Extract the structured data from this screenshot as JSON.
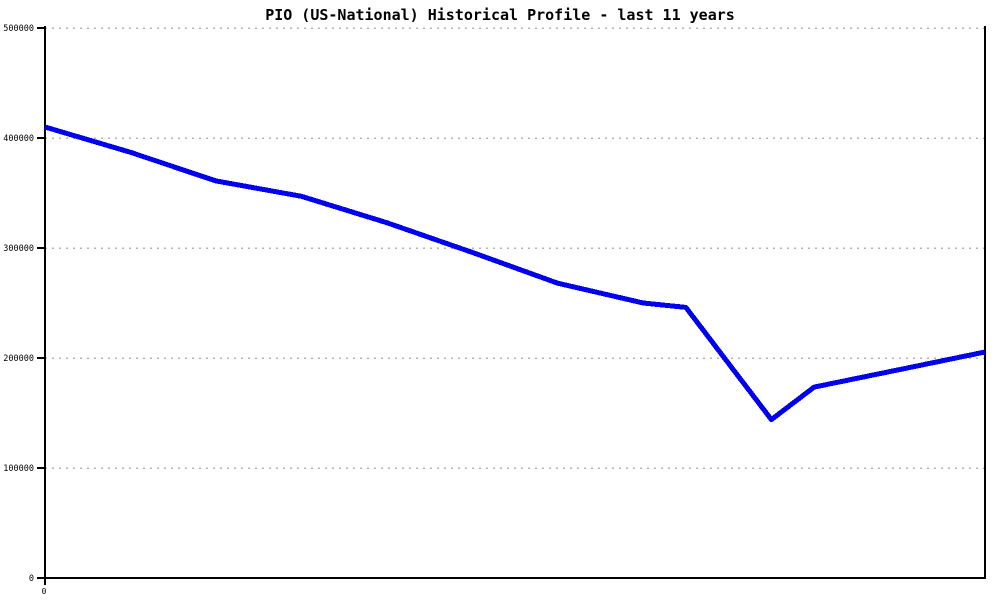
{
  "chart_data": {
    "type": "line",
    "title": "PIO (US-National) Historical Profile - last 11 years",
    "xlabel": "",
    "ylabel": "",
    "x_axis": {
      "range": [
        0,
        11
      ],
      "unit": "years ago (relative index)",
      "ticks": [
        {
          "value": 0,
          "label": "0"
        }
      ]
    },
    "y_axis": {
      "range": [
        0,
        500000
      ],
      "ticks": [
        {
          "value": 0,
          "label": "0"
        },
        {
          "value": 100000,
          "label": "100000"
        },
        {
          "value": 200000,
          "label": "200000"
        },
        {
          "value": 300000,
          "label": "300000"
        },
        {
          "value": 400000,
          "label": "400000"
        },
        {
          "value": 500000,
          "label": "500000"
        }
      ]
    },
    "grid": {
      "horizontal": true,
      "vertical": false,
      "style": "dotted",
      "color": "#b4b4b4"
    },
    "legend": "none",
    "colors": {
      "background": "#ffffff",
      "axis": "#000000",
      "line": "#0000ee"
    },
    "series": [
      {
        "name": "PIO (US-National)",
        "color": "#0000ee",
        "line_width": 5,
        "points": [
          [
            0,
            410000
          ],
          [
            1,
            387000
          ],
          [
            2,
            361000
          ],
          [
            3,
            347000
          ],
          [
            4,
            323000
          ],
          [
            5,
            296000
          ],
          [
            6,
            268000
          ],
          [
            7,
            250000
          ],
          [
            7.5,
            246000
          ],
          [
            8,
            195000
          ],
          [
            8.5,
            144000
          ],
          [
            9,
            173500
          ],
          [
            10,
            189500
          ],
          [
            11,
            205500
          ]
        ]
      }
    ]
  }
}
